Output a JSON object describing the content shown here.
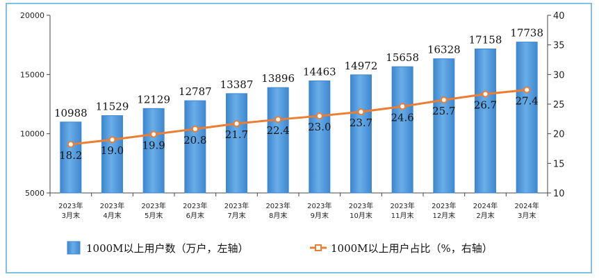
{
  "chart_data": {
    "type": "bar+line",
    "categories": [
      [
        "2023年",
        "3月末"
      ],
      [
        "2023年",
        "4月末"
      ],
      [
        "2023年",
        "5月末"
      ],
      [
        "2023年",
        "6月末"
      ],
      [
        "2023年",
        "7月末"
      ],
      [
        "2023年",
        "8月末"
      ],
      [
        "2023年",
        "9月末"
      ],
      [
        "2023年",
        "10月末"
      ],
      [
        "2023年",
        "11月末"
      ],
      [
        "2023年",
        "12月末"
      ],
      [
        "2024年",
        "2月末"
      ],
      [
        "2024年",
        "3月末"
      ]
    ],
    "series": [
      {
        "name": "1000M以上用户数（万户，左轴）",
        "type": "bar",
        "axis": "left",
        "color": "#4f96d8",
        "values": [
          10988,
          11529,
          12129,
          12787,
          13387,
          13896,
          14463,
          14972,
          15658,
          16328,
          17158,
          17738
        ],
        "labels": [
          "10988",
          "11529",
          "12129",
          "12787",
          "13387",
          "13896",
          "14463",
          "14972",
          "15658",
          "16328",
          "17158",
          "17738"
        ]
      },
      {
        "name": "1000M以上用户占比（%，右轴）",
        "type": "line",
        "axis": "right",
        "color": "#ed7d31",
        "values": [
          18.2,
          19.0,
          19.9,
          20.8,
          21.7,
          22.4,
          23.0,
          23.7,
          24.6,
          25.7,
          26.7,
          27.4
        ],
        "labels": [
          "18.2",
          "19.0",
          "19.9",
          "20.8",
          "21.7",
          "22.4",
          "23.0",
          "23.7",
          "24.6",
          "25.7",
          "26.7",
          "27.4"
        ]
      }
    ],
    "left_axis": {
      "range": [
        5000,
        20000
      ],
      "ticks": [
        "5000",
        "10000",
        "15000",
        "20000"
      ]
    },
    "right_axis": {
      "range": [
        10,
        40
      ],
      "ticks": [
        "10",
        "15",
        "20",
        "25",
        "30",
        "35",
        "40"
      ]
    },
    "grid": false,
    "legend_position": "bottom"
  }
}
